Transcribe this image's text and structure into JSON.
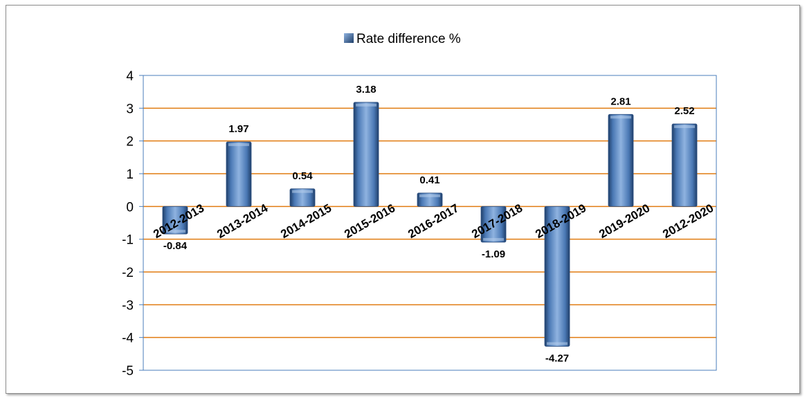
{
  "chart_data": {
    "type": "bar",
    "categories": [
      "2012-2013",
      "2013-2014",
      "2014-2015",
      "2015-2016",
      "2016-2017",
      "2017-2018",
      "2018-2019",
      "2019-2020",
      "2012-2020"
    ],
    "series": [
      {
        "name": "Rate difference %",
        "values": [
          -0.84,
          1.97,
          0.54,
          3.18,
          0.41,
          -1.09,
          -4.27,
          2.81,
          2.52
        ]
      }
    ],
    "data_labels": [
      "-0.84",
      "1.97",
      "0.54",
      "3.18",
      "0.41",
      "-1.09",
      "-4.27",
      "2.81",
      "2.52"
    ],
    "ylim": [
      -5,
      4
    ],
    "y_ticks": [
      4,
      3,
      2,
      1,
      0,
      -1,
      -2,
      -3,
      -4,
      -5
    ],
    "grid": true,
    "legend_position": "top-center",
    "colors": {
      "bar": "#4a78b4",
      "bar_light": "#8fb3e0",
      "bar_dark": "#1f3f6a",
      "grid": "#e07b10",
      "plot_border": "#4a7ebb"
    }
  }
}
